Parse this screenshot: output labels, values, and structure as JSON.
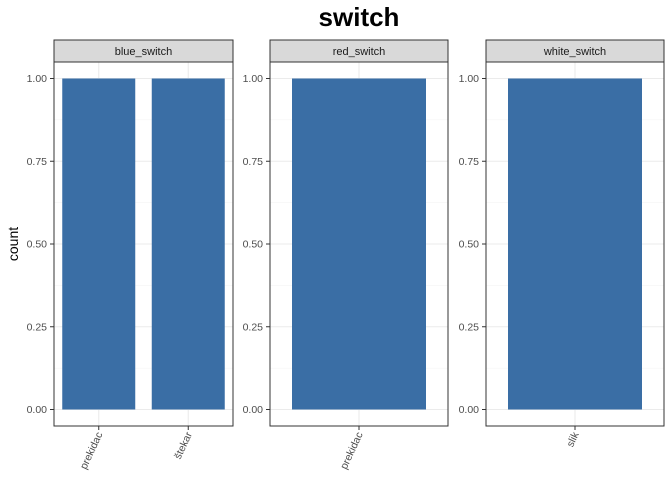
{
  "chart_data": {
    "type": "bar",
    "title": "switch",
    "xlabel": "",
    "ylabel": "count",
    "ylim": [
      0,
      1.05
    ],
    "yticks": [
      "0.00",
      "0.25",
      "0.50",
      "0.75",
      "1.00"
    ],
    "grid": true,
    "bar_color": "#3A6EA5",
    "facets": [
      {
        "name": "blue_switch",
        "categories": [
          "prekidac",
          "štekar"
        ],
        "values": [
          1,
          1
        ]
      },
      {
        "name": "red_switch",
        "categories": [
          "prekidac"
        ],
        "values": [
          1
        ]
      },
      {
        "name": "white_switch",
        "categories": [
          "slik"
        ],
        "values": [
          1
        ]
      }
    ]
  }
}
